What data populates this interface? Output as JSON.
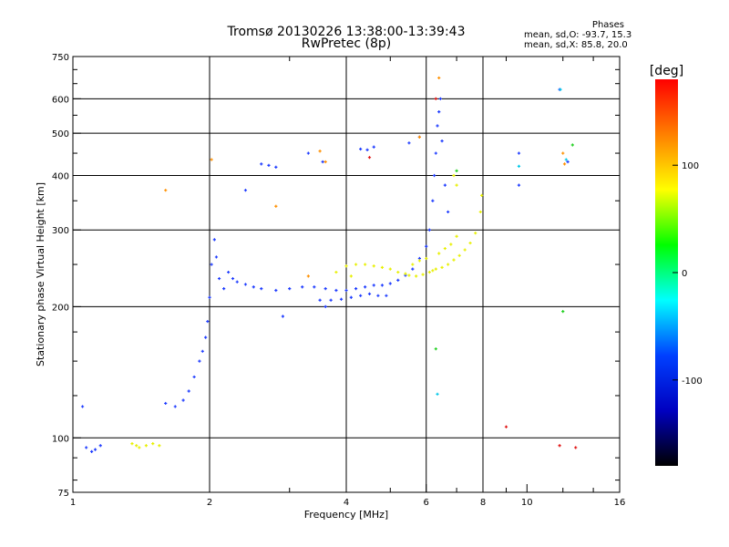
{
  "chart_data": {
    "type": "scatter",
    "title": "Tromsø 20130226 13:38:00-13:39:43",
    "subtitle": "RwPretec (8p)",
    "xlabel": "Frequency [MHz]",
    "ylabel": "Stationary phase Virtual Height [km]",
    "x_scale": "log",
    "y_scale": "log",
    "xlim": [
      1,
      16
    ],
    "ylim": [
      75,
      750
    ],
    "x_ticks": [
      1,
      2,
      4,
      6,
      8,
      10,
      16
    ],
    "x_tick_labels": [
      "1",
      "2",
      "4",
      "6",
      "8",
      "10",
      "16"
    ],
    "y_ticks": [
      75,
      100,
      200,
      300,
      400,
      500,
      600,
      750
    ],
    "y_tick_labels": [
      "75",
      "100",
      "200",
      "300",
      "400",
      "500",
      "600",
      "750"
    ],
    "grid": true,
    "grid_x": [
      2,
      4,
      6,
      8
    ],
    "grid_y": [
      100,
      200,
      300,
      400,
      500,
      600
    ],
    "phase_annotation": {
      "title": "Phases",
      "line1": "mean, sd,O: -93.7, 15.3",
      "line2": "mean, sd,X: 85.8, 20.0"
    },
    "colorbar": {
      "label": "[deg]",
      "range": [
        -180,
        180
      ],
      "ticks": [
        100,
        0,
        -100
      ],
      "tick_labels": [
        "100",
        "0",
        "-100"
      ],
      "colors": [
        "#ff0000",
        "#ff8000",
        "#ffff00",
        "#00ff00",
        "#00ffff",
        "#0040ff",
        "#0000c0",
        "#000000"
      ]
    },
    "series": [
      {
        "mode": "O",
        "phase_deg": -100,
        "color": "#1e3cff",
        "x": [
          1.05,
          1.07,
          1.1,
          1.12,
          1.15,
          1.6,
          1.68,
          1.75,
          1.8,
          1.85,
          1.9,
          1.93,
          1.96,
          1.98,
          2.0,
          2.02,
          2.05,
          2.07,
          2.1,
          2.15,
          2.2,
          2.25,
          2.3,
          2.4,
          2.5,
          2.6,
          2.8,
          3.0,
          3.2,
          3.4,
          3.6,
          3.8,
          4.0,
          4.2,
          4.4,
          4.6,
          4.8,
          5.0,
          5.2,
          5.4,
          5.6,
          5.8,
          6.0,
          6.1,
          6.2,
          6.25,
          6.3,
          6.35,
          6.4,
          6.45,
          6.5,
          6.6,
          6.7,
          3.5,
          3.7,
          3.9,
          4.1,
          4.3,
          4.5,
          4.7,
          4.9,
          2.6,
          2.7,
          2.8,
          4.3,
          4.45,
          4.6,
          5.5,
          5.8,
          3.3,
          3.55,
          2.4,
          2.9,
          3.6,
          9.6,
          9.6,
          11.8,
          12.3
        ],
        "y": [
          118,
          95,
          93,
          94,
          96,
          120,
          118,
          122,
          128,
          138,
          150,
          158,
          170,
          185,
          210,
          250,
          285,
          260,
          232,
          220,
          240,
          232,
          228,
          225,
          222,
          220,
          218,
          220,
          222,
          222,
          220,
          218,
          218,
          220,
          222,
          224,
          224,
          226,
          230,
          236,
          244,
          258,
          275,
          300,
          350,
          400,
          450,
          520,
          560,
          600,
          480,
          380,
          330,
          207,
          207,
          208,
          210,
          212,
          214,
          212,
          212,
          425,
          422,
          418,
          460,
          458,
          465,
          475,
          490,
          450,
          430,
          370,
          190,
          200,
          450,
          380,
          630,
          430
        ],
        "marker": "cross"
      },
      {
        "mode": "X",
        "phase_deg": 85,
        "color": "#e8f000",
        "x": [
          1.35,
          1.38,
          1.4,
          1.45,
          1.5,
          1.55,
          4.0,
          4.2,
          4.4,
          4.6,
          4.8,
          5.0,
          5.2,
          5.4,
          5.5,
          5.7,
          5.9,
          6.1,
          6.2,
          6.3,
          6.5,
          6.7,
          6.9,
          7.1,
          7.3,
          7.5,
          7.7,
          7.9,
          7.95,
          5.6,
          5.8,
          6.0,
          6.4,
          6.6,
          6.8,
          7.0,
          6.9,
          7.0,
          3.8,
          4.1
        ],
        "y": [
          97,
          96,
          95,
          96,
          97,
          96,
          248,
          250,
          250,
          248,
          246,
          244,
          240,
          238,
          236,
          235,
          237,
          240,
          242,
          244,
          246,
          250,
          256,
          262,
          270,
          280,
          295,
          330,
          360,
          250,
          255,
          258,
          265,
          272,
          278,
          290,
          400,
          380,
          240,
          235
        ],
        "marker": "cross"
      },
      {
        "mode": "other",
        "phase_deg": 130,
        "color": "#ff9000",
        "x": [
          1.6,
          2.02,
          3.5,
          3.6,
          5.8,
          6.4,
          12.0,
          12.1,
          2.8,
          3.3
        ],
        "y": [
          370,
          435,
          455,
          430,
          490,
          670,
          450,
          425,
          340,
          235
        ],
        "marker": "cross"
      },
      {
        "mode": "other",
        "phase_deg": 175,
        "color": "#e01010",
        "x": [
          9.0,
          11.8,
          12.8,
          4.5,
          6.3
        ],
        "y": [
          106,
          96,
          95,
          440,
          600
        ],
        "marker": "cross"
      },
      {
        "mode": "other",
        "phase_deg": 20,
        "color": "#20d020",
        "x": [
          6.3,
          12.0,
          12.6,
          7.0
        ],
        "y": [
          160,
          195,
          470,
          410
        ],
        "marker": "cross"
      },
      {
        "mode": "other",
        "phase_deg": -40,
        "color": "#00c8e8",
        "x": [
          6.35,
          9.6,
          11.85,
          12.2
        ],
        "y": [
          126,
          420,
          630,
          435
        ],
        "marker": "cross"
      }
    ]
  }
}
